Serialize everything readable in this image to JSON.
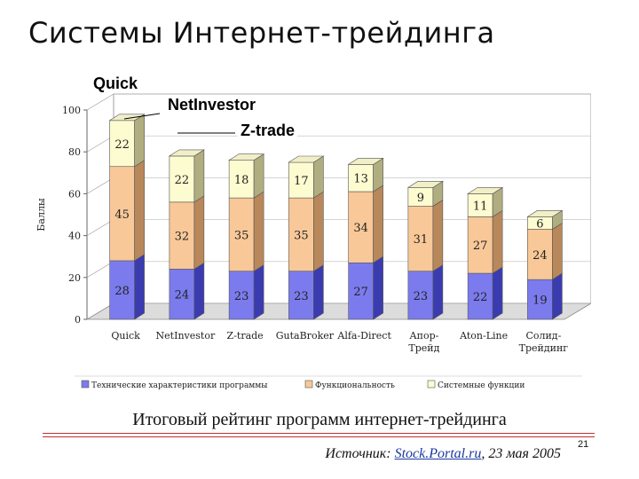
{
  "slide": {
    "title": "Системы Интернет-трейдинга",
    "caption": "Итоговый рейтинг программ интернет-трейдинга",
    "source_prefix": "Источник: ",
    "source_link": "Stock.Portal.ru",
    "source_suffix": ", 23 мая 2005",
    "page_number": "21"
  },
  "callouts": [
    "Quick",
    "NetInvestor",
    "Z-trade"
  ],
  "chart_data": {
    "type": "bar",
    "stacked": true,
    "ylabel": "Баллы",
    "ylim": [
      0,
      100
    ],
    "yticks": [
      "0",
      "20",
      "40",
      "60",
      "80",
      "100"
    ],
    "categories": [
      [
        "Quick"
      ],
      [
        "NetInvestor"
      ],
      [
        "Z-trade"
      ],
      [
        "GutaBroker"
      ],
      [
        "Alfa-Direct"
      ],
      [
        "Апор-",
        "Трейд"
      ],
      [
        "Aton-Line"
      ],
      [
        "Солид-",
        "Трейдинг"
      ]
    ],
    "series": [
      {
        "name": "Технические характеристики программы",
        "values": [
          28,
          24,
          23,
          23,
          27,
          23,
          22,
          19
        ],
        "color": "#7b7bee",
        "dark": "#3b3bb0"
      },
      {
        "name": "Функциональность",
        "values": [
          45,
          32,
          35,
          35,
          34,
          31,
          27,
          24
        ],
        "color": "#f8c898",
        "dark": "#b8885a"
      },
      {
        "name": "Системные функции",
        "values": [
          22,
          22,
          18,
          17,
          13,
          9,
          11,
          6
        ],
        "color": "#fdfbd0",
        "dark": "#b0ad80"
      }
    ],
    "legend_position": "bottom"
  }
}
